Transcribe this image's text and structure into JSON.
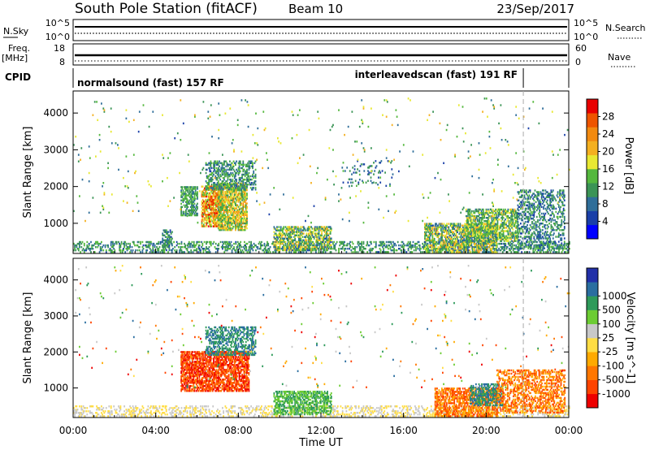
{
  "header": {
    "title": "South Pole Station (fitACF)",
    "beam": "Beam 10",
    "date": "23/Sep/2017"
  },
  "nsky": {
    "label": "N.Sky",
    "ticks": [
      "10^5",
      "10^0"
    ],
    "right_label": "N.Search",
    "right_ticks": [
      "10^5",
      "10^0"
    ]
  },
  "freq": {
    "label": "Freq.",
    "unit": "[MHz]",
    "ticks": [
      "18",
      "8"
    ],
    "right_label": "Nave",
    "right_ticks": [
      "60",
      "0"
    ]
  },
  "cpid": {
    "label": "CPID",
    "segments": [
      {
        "text": "normalsound (fast) 157 RF",
        "start": 0.0,
        "end": 21.8
      },
      {
        "text": "interleavedscan (fast) 191 RF",
        "start": 21.8,
        "end": 24.0
      }
    ]
  },
  "colors": {
    "power": [
      "#0000ff",
      "#1a3fa8",
      "#2f6e99",
      "#3b9456",
      "#55b83e",
      "#e8e832",
      "#f4b020",
      "#f28a10",
      "#ee5500",
      "#e80000"
    ],
    "velocity": [
      "#ee0000",
      "#ff4400",
      "#ff7700",
      "#ffaa00",
      "#ffdd44",
      "#c8c8c8",
      "#6ccc33",
      "#2e9a5a",
      "#2a6ea0",
      "#2230a8"
    ]
  },
  "chart_data": [
    {
      "type": "heatmap",
      "name": "power",
      "xlabel": "",
      "ylabel": "Slant Range [km]",
      "xlim": [
        0,
        24
      ],
      "ylim": [
        180,
        4600
      ],
      "yticks": [
        1000,
        2000,
        3000,
        4000
      ],
      "colorbar": {
        "label": "Power [dB]",
        "ticks": [
          "4",
          "8",
          "12",
          "16",
          "20",
          "24",
          "28"
        ],
        "range": [
          0,
          32
        ]
      },
      "regions": [
        {
          "t0": 0.0,
          "t1": 24.0,
          "r0": 200,
          "r1": 500,
          "v0": 6,
          "v1": 16,
          "density": 0.35
        },
        {
          "t0": 4.3,
          "t1": 4.8,
          "r0": 250,
          "r1": 800,
          "v0": 6,
          "v1": 14,
          "density": 0.5
        },
        {
          "t0": 5.2,
          "t1": 6.0,
          "r0": 1200,
          "r1": 2000,
          "v0": 8,
          "v1": 16,
          "density": 0.55
        },
        {
          "t0": 6.2,
          "t1": 7.2,
          "r0": 900,
          "r1": 2000,
          "v0": 14,
          "v1": 30,
          "density": 0.75
        },
        {
          "t0": 7.0,
          "t1": 8.4,
          "r0": 800,
          "r1": 2100,
          "v0": 10,
          "v1": 24,
          "density": 0.7
        },
        {
          "t0": 6.4,
          "t1": 8.8,
          "r0": 1900,
          "r1": 2700,
          "v0": 6,
          "v1": 16,
          "density": 0.45
        },
        {
          "t0": 9.7,
          "t1": 12.5,
          "r0": 250,
          "r1": 900,
          "v0": 6,
          "v1": 22,
          "density": 0.55
        },
        {
          "t0": 13.0,
          "t1": 15.5,
          "r0": 2000,
          "r1": 2700,
          "v0": 4,
          "v1": 14,
          "density": 0.08
        },
        {
          "t0": 17.0,
          "t1": 20.5,
          "r0": 200,
          "r1": 1000,
          "v0": 6,
          "v1": 22,
          "density": 0.6
        },
        {
          "t0": 19.0,
          "t1": 21.5,
          "r0": 500,
          "r1": 1400,
          "v0": 8,
          "v1": 20,
          "density": 0.55
        },
        {
          "t0": 21.5,
          "t1": 23.8,
          "r0": 300,
          "r1": 1900,
          "v0": 5,
          "v1": 14,
          "density": 0.35
        },
        {
          "t0": 0.0,
          "t1": 24.0,
          "r0": 1000,
          "r1": 4400,
          "v0": 6,
          "v1": 22,
          "density": 0.01
        }
      ]
    },
    {
      "type": "heatmap",
      "name": "velocity",
      "xlabel": "Time UT",
      "ylabel": "Slant Range [km]",
      "xlim": [
        0,
        24
      ],
      "ylim": [
        180,
        4600
      ],
      "yticks": [
        1000,
        2000,
        3000,
        4000
      ],
      "xticks": [
        "00:00",
        "04:00",
        "08:00",
        "12:00",
        "16:00",
        "20:00",
        "00:00"
      ],
      "colorbar": {
        "label": "Velocity [m s^-1]",
        "ticks": [
          "-1000",
          "-500",
          "-100",
          "-25",
          "25",
          "100",
          "500",
          "1000"
        ]
      },
      "regions": [
        {
          "t0": 0.0,
          "t1": 24.0,
          "r0": 200,
          "r1": 500,
          "v0": 4,
          "v1": 6,
          "density": 0.3
        },
        {
          "t0": 5.2,
          "t1": 8.5,
          "r0": 900,
          "r1": 2000,
          "v0": 0,
          "v1": 3,
          "density": 0.7
        },
        {
          "t0": 6.4,
          "t1": 8.8,
          "r0": 1900,
          "r1": 2700,
          "v0": 7,
          "v1": 9,
          "density": 0.45
        },
        {
          "t0": 9.7,
          "t1": 12.5,
          "r0": 250,
          "r1": 900,
          "v0": 6,
          "v1": 8,
          "density": 0.55
        },
        {
          "t0": 17.5,
          "t1": 20.5,
          "r0": 200,
          "r1": 1000,
          "v0": 1,
          "v1": 4,
          "density": 0.6
        },
        {
          "t0": 19.2,
          "t1": 20.8,
          "r0": 500,
          "r1": 1100,
          "v0": 7,
          "v1": 9,
          "density": 0.5
        },
        {
          "t0": 20.5,
          "t1": 23.8,
          "r0": 300,
          "r1": 1500,
          "v0": 1,
          "v1": 4,
          "density": 0.45
        },
        {
          "t0": 0.0,
          "t1": 24.0,
          "r0": 1000,
          "r1": 4400,
          "v0": 0,
          "v1": 9,
          "density": 0.01
        }
      ]
    }
  ]
}
